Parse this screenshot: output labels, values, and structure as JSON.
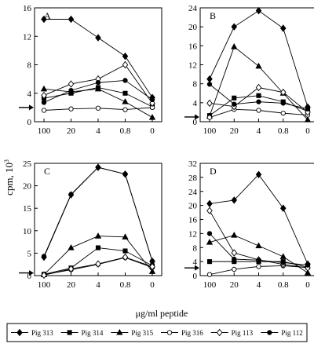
{
  "figure": {
    "ylabel": "cpm,  10",
    "ylabel_exp": "3",
    "xlabel": "μg/ml peptide"
  },
  "legend": [
    {
      "name": "Pig 313",
      "marker": "diamond-filled"
    },
    {
      "name": "Pig 314",
      "marker": "square-filled"
    },
    {
      "name": "Pig 315",
      "marker": "triangle-filled"
    },
    {
      "name": "Pig 316",
      "marker": "circle-open"
    },
    {
      "name": "Pig 113",
      "marker": "diamond-open"
    },
    {
      "name": "Pig 112",
      "marker": "circle-filled"
    }
  ],
  "chart_data": [
    {
      "type": "line",
      "panel_label": "A",
      "categories": [
        "100",
        "20",
        "4",
        "0.8",
        "0"
      ],
      "ylim": [
        0,
        16
      ],
      "yticks": [
        "0",
        "4",
        "8",
        "12",
        "16"
      ],
      "arrow_value": 2,
      "series": [
        {
          "name": "Pig 313",
          "values": [
            14.4,
            14.4,
            11.8,
            9.2,
            3.4
          ]
        },
        {
          "name": "Pig 314",
          "values": [
            3.3,
            4.0,
            4.8,
            4.0,
            2.1
          ]
        },
        {
          "name": "Pig 315",
          "values": [
            4.6,
            4.2,
            4.6,
            2.8,
            0.6
          ]
        },
        {
          "name": "Pig 316",
          "values": [
            1.6,
            1.8,
            1.9,
            1.7,
            2.0
          ]
        },
        {
          "name": "Pig 113",
          "values": [
            3.7,
            5.3,
            6.0,
            8.0,
            2.6
          ]
        },
        {
          "name": "Pig 112",
          "values": [
            2.7,
            4.4,
            5.5,
            5.8,
            3.1
          ]
        }
      ]
    },
    {
      "type": "line",
      "panel_label": "B",
      "categories": [
        "100",
        "20",
        "4",
        "0.8",
        "0"
      ],
      "ylim": [
        0,
        24
      ],
      "yticks": [
        "0",
        "4",
        "8",
        "12",
        "16",
        "20",
        "24"
      ],
      "arrow_value": 1,
      "series": [
        {
          "name": "Pig 313",
          "values": [
            9.0,
            20.0,
            23.4,
            19.7,
            3.1
          ]
        },
        {
          "name": "Pig 314",
          "values": [
            1.3,
            5.0,
            5.5,
            4.2,
            2.2
          ]
        },
        {
          "name": "Pig 315",
          "values": [
            1.2,
            15.8,
            11.7,
            6.0,
            0.4
          ]
        },
        {
          "name": "Pig 316",
          "values": [
            0.9,
            2.6,
            2.4,
            1.8,
            1.4
          ]
        },
        {
          "name": "Pig 113",
          "values": [
            3.9,
            3.2,
            7.2,
            6.2,
            2.0
          ]
        },
        {
          "name": "Pig 112",
          "values": [
            7.9,
            3.7,
            4.2,
            3.9,
            2.7
          ]
        }
      ]
    },
    {
      "type": "line",
      "panel_label": "C",
      "categories": [
        "100",
        "20",
        "4",
        "0.8",
        "0"
      ],
      "ylim": [
        0,
        25
      ],
      "yticks": [
        "0",
        "5",
        "10",
        "15",
        "20",
        "25"
      ],
      "arrow_value": 0.6,
      "series": [
        {
          "name": "Pig 313",
          "values": [
            4.1,
            18.0,
            24.1,
            22.6,
            3.2
          ]
        },
        {
          "name": "Pig 314",
          "values": [
            0.3,
            1.7,
            6.2,
            5.5,
            2.2
          ]
        },
        {
          "name": "Pig 315",
          "values": [
            0.2,
            6.2,
            8.8,
            8.6,
            0.9
          ]
        },
        {
          "name": "Pig 316",
          "values": [
            0.2,
            1.3,
            2.5,
            4.0,
            1.8
          ]
        },
        {
          "name": "Pig 113",
          "values": [
            0.1,
            1.5,
            2.6,
            4.1,
            2.0
          ]
        },
        {
          "name": "Pig 112",
          "values": [
            4.3,
            18.1,
            24.1,
            22.6,
            3.2
          ]
        }
      ]
    },
    {
      "type": "line",
      "panel_label": "D",
      "categories": [
        "100",
        "20",
        "4",
        "0.8",
        "0"
      ],
      "ylim": [
        0,
        32
      ],
      "yticks": [
        "0",
        "4",
        "8",
        "12",
        "16",
        "20",
        "24",
        "28",
        "32"
      ],
      "arrow_value": 2.2,
      "series": [
        {
          "name": "Pig 313",
          "values": [
            20.5,
            21.5,
            28.8,
            19.2,
            3.3
          ]
        },
        {
          "name": "Pig 314",
          "values": [
            4.0,
            4.0,
            4.0,
            4.0,
            2.4
          ]
        },
        {
          "name": "Pig 315",
          "values": [
            9.5,
            11.5,
            8.5,
            5.4,
            0.8
          ]
        },
        {
          "name": "Pig 316",
          "values": [
            0.3,
            1.8,
            2.6,
            2.8,
            2.3
          ]
        },
        {
          "name": "Pig 113",
          "values": [
            18.5,
            6.5,
            4.5,
            3.2,
            2.2
          ]
        },
        {
          "name": "Pig 112",
          "values": [
            12.0,
            4.7,
            4.4,
            3.7,
            3.0
          ]
        }
      ]
    }
  ]
}
